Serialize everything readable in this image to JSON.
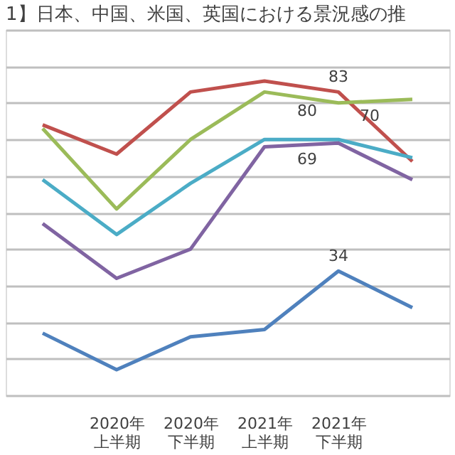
{
  "chart_data": {
    "type": "line",
    "title": "1】日本、中国、米国、英国における景況感の推",
    "categories": [
      null,
      "2020年上半期",
      "2020年下半期",
      "2021年上半期",
      "2021年下半期",
      null
    ],
    "ylim": [
      0,
      100
    ],
    "tick_labels": "x",
    "grid": "y",
    "legend": false,
    "marker": "none",
    "line_style": "solid",
    "series": [
      {
        "color": "#c0504d",
        "values": [
          74,
          66,
          83,
          86,
          83,
          64
        ],
        "value_labels": [
          null,
          null,
          null,
          null,
          "83",
          null
        ]
      },
      {
        "color": "#9bbb59",
        "values": [
          73,
          51,
          70,
          83,
          80,
          81
        ],
        "value_labels": [
          null,
          null,
          null,
          null,
          "80",
          null
        ]
      },
      {
        "color": "#4bacc6",
        "values": [
          59,
          44,
          58,
          70,
          70,
          65
        ],
        "value_labels": [
          null,
          null,
          null,
          null,
          "70",
          null
        ]
      },
      {
        "color": "#8064a2",
        "values": [
          47,
          32,
          40,
          68,
          69,
          59
        ],
        "value_labels": [
          null,
          null,
          null,
          null,
          "69",
          null
        ]
      },
      {
        "color": "#4f81bd",
        "values": [
          17,
          7,
          16,
          18,
          34,
          24
        ],
        "value_labels": [
          null,
          null,
          null,
          null,
          "34",
          null
        ]
      }
    ]
  }
}
